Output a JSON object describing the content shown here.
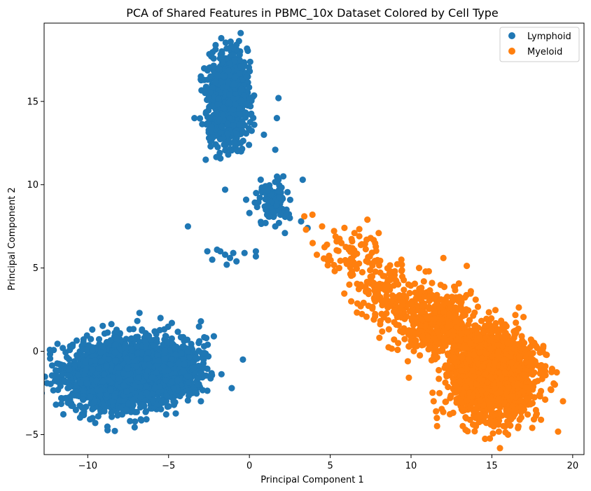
{
  "chart_data": {
    "type": "scatter",
    "title": "PCA of Shared Features in PBMC_10x Dataset Colored by Cell Type",
    "xlabel": "Principal Component 1",
    "ylabel": "Principal Component 2",
    "xlim": [
      -12.7,
      20.7
    ],
    "ylim": [
      -6.2,
      19.7
    ],
    "xticks": [
      -10,
      -5,
      0,
      5,
      10,
      15,
      20
    ],
    "yticks": [
      -5,
      0,
      5,
      10,
      15
    ],
    "grid": false,
    "legend": {
      "position": "top-right"
    },
    "series": [
      {
        "name": "Lymphoid",
        "color": "#1f77b4",
        "clusters": [
          {
            "center": [
              -8.0,
              -1.5
            ],
            "spread": [
              1.6,
              1.0
            ],
            "count": 2200
          },
          {
            "center": [
              -5.2,
              -1.0
            ],
            "spread": [
              1.1,
              0.9
            ],
            "count": 700
          },
          {
            "center": [
              -1.3,
              15.2
            ],
            "spread": [
              0.6,
              1.3
            ],
            "count": 900
          },
          {
            "center": [
              1.5,
              9.0
            ],
            "spread": [
              0.5,
              0.5
            ],
            "count": 110
          }
        ],
        "points": [
          [
            -2.0,
            6.1
          ],
          [
            -1.8,
            6.0
          ],
          [
            -1.5,
            5.8
          ],
          [
            -1.2,
            5.6
          ],
          [
            -1.0,
            5.9
          ],
          [
            -0.8,
            5.4
          ],
          [
            -1.4,
            5.2
          ],
          [
            -2.3,
            5.5
          ],
          [
            -2.6,
            6.0
          ],
          [
            -0.3,
            5.9
          ],
          [
            0.4,
            6.0
          ],
          [
            0.4,
            5.7
          ],
          [
            -3.8,
            7.5
          ],
          [
            -1.5,
            9.7
          ],
          [
            -0.2,
            9.1
          ],
          [
            -0.4,
            -0.5
          ],
          [
            -3.2,
            -2.0
          ],
          [
            -3.0,
            -3.0
          ],
          [
            -2.8,
            0.3
          ],
          [
            -3.0,
            1.8
          ],
          [
            -6.8,
            2.3
          ],
          [
            -5.5,
            2.0
          ],
          [
            -4.8,
            1.7
          ],
          [
            -2.2,
            0.9
          ],
          [
            -2.7,
            11.5
          ],
          [
            -2.4,
            12.3
          ],
          [
            -0.6,
            17.8
          ],
          [
            -1.7,
            18.0
          ],
          [
            -1.0,
            18.2
          ],
          [
            -0.9,
            12.5
          ],
          [
            0.9,
            13.0
          ],
          [
            0.3,
            13.6
          ],
          [
            1.6,
            12.1
          ],
          [
            1.7,
            14.0
          ],
          [
            1.8,
            15.2
          ],
          [
            -3.0,
            16.5
          ],
          [
            -3.4,
            14.0
          ],
          [
            -2.5,
            12.8
          ],
          [
            2.1,
            10.5
          ],
          [
            2.5,
            8.0
          ],
          [
            3.2,
            7.8
          ],
          [
            3.6,
            7.4
          ],
          [
            1.0,
            7.7
          ],
          [
            1.6,
            7.5
          ],
          [
            2.2,
            7.1
          ],
          [
            0.7,
            10.3
          ],
          [
            1.8,
            10.3
          ],
          [
            0.0,
            8.3
          ],
          [
            3.3,
            10.3
          ]
        ]
      },
      {
        "name": "Myeloid",
        "color": "#ff7f0e",
        "clusters": [
          {
            "center": [
              15.0,
              -1.4
            ],
            "spread": [
              1.3,
              1.3
            ],
            "count": 1700
          },
          {
            "center": [
              11.5,
              1.6
            ],
            "spread": [
              1.3,
              1.0
            ],
            "count": 450
          },
          {
            "center": [
              8.4,
              3.6
            ],
            "spread": [
              1.0,
              0.9
            ],
            "count": 150
          },
          {
            "center": [
              6.2,
              5.9
            ],
            "spread": [
              0.9,
              0.6
            ],
            "count": 60
          }
        ],
        "points": [
          [
            3.4,
            8.1
          ],
          [
            3.9,
            8.2
          ],
          [
            3.5,
            7.3
          ],
          [
            4.5,
            7.5
          ],
          [
            4.8,
            6.4
          ],
          [
            7.3,
            7.9
          ],
          [
            6.5,
            7.1
          ],
          [
            5.4,
            6.6
          ],
          [
            7.5,
            6.8
          ],
          [
            8.0,
            7.1
          ],
          [
            6.5,
            5.2
          ],
          [
            9.4,
            5.5
          ],
          [
            9.0,
            4.8
          ],
          [
            6.3,
            3.0
          ],
          [
            8.8,
            3.0
          ],
          [
            9.8,
            -0.6
          ],
          [
            11.4,
            -3.0
          ],
          [
            12.2,
            -1.5
          ],
          [
            11.6,
            -4.0
          ],
          [
            18.9,
            -2.0
          ],
          [
            19.4,
            -3.0
          ],
          [
            18.3,
            -2.9
          ],
          [
            13.5,
            -4.8
          ],
          [
            16.0,
            -5.0
          ],
          [
            17.5,
            -4.6
          ],
          [
            12.3,
            2.9
          ],
          [
            14.0,
            3.1
          ],
          [
            13.7,
            3.6
          ],
          [
            12.0,
            5.6
          ],
          [
            11.1,
            4.8
          ],
          [
            11.3,
            4.1
          ],
          [
            10.5,
            5.0
          ],
          [
            17.0,
            0.5
          ],
          [
            17.8,
            0.2
          ],
          [
            18.3,
            -1.2
          ]
        ]
      }
    ]
  }
}
